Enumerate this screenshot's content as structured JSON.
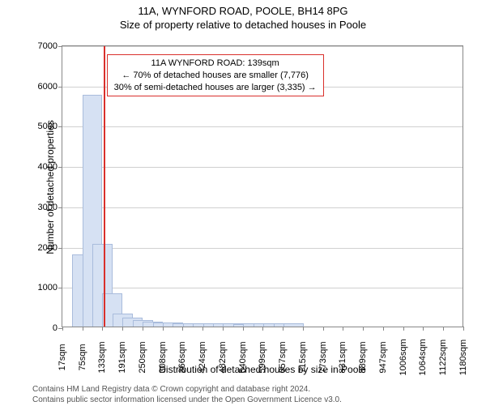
{
  "title": "11A, WYNFORD ROAD, POOLE, BH14 8PG",
  "subtitle": "Size of property relative to detached houses in Poole",
  "chart": {
    "type": "bar",
    "xlabel": "Distribution of detached houses by size in Poole",
    "ylabel": "Number of detached properties",
    "background_color": "#ffffff",
    "grid_color": "#d0d0d0",
    "axis_color": "#888888",
    "bar_fill": "#d6e1f3",
    "bar_stroke": "#a9bcdc",
    "ylim": [
      0,
      7000
    ],
    "ytick_step": 1000,
    "yticks": [
      0,
      1000,
      2000,
      3000,
      4000,
      5000,
      6000,
      7000
    ],
    "x_tick_labels": [
      "17sqm",
      "75sqm",
      "133sqm",
      "191sqm",
      "250sqm",
      "308sqm",
      "366sqm",
      "424sqm",
      "482sqm",
      "540sqm",
      "599sqm",
      "657sqm",
      "715sqm",
      "773sqm",
      "831sqm",
      "889sqm",
      "947sqm",
      "1006sqm",
      "1064sqm",
      "1122sqm",
      "1180sqm"
    ],
    "x_tick_step_sqm": 58,
    "x_min_sqm": 17,
    "x_max_sqm": 1180,
    "bars": [
      {
        "center_sqm": 75,
        "value": 1800
      },
      {
        "center_sqm": 104,
        "value": 5750
      },
      {
        "center_sqm": 133,
        "value": 2050
      },
      {
        "center_sqm": 162,
        "value": 820
      },
      {
        "center_sqm": 191,
        "value": 320
      },
      {
        "center_sqm": 220,
        "value": 220
      },
      {
        "center_sqm": 250,
        "value": 160
      },
      {
        "center_sqm": 279,
        "value": 130
      },
      {
        "center_sqm": 308,
        "value": 110
      },
      {
        "center_sqm": 337,
        "value": 100
      },
      {
        "center_sqm": 366,
        "value": 90
      },
      {
        "center_sqm": 395,
        "value": 80
      },
      {
        "center_sqm": 424,
        "value": 80
      },
      {
        "center_sqm": 453,
        "value": 80
      },
      {
        "center_sqm": 482,
        "value": 80
      },
      {
        "center_sqm": 511,
        "value": 80
      },
      {
        "center_sqm": 540,
        "value": 70
      },
      {
        "center_sqm": 570,
        "value": 80
      },
      {
        "center_sqm": 599,
        "value": 80
      },
      {
        "center_sqm": 628,
        "value": 80
      },
      {
        "center_sqm": 657,
        "value": 80
      },
      {
        "center_sqm": 686,
        "value": 80
      }
    ],
    "reference_line": {
      "sqm": 139,
      "color": "#d9302c",
      "width": 2
    },
    "annotation": {
      "lines": [
        "11A WYNFORD ROAD: 139sqm",
        "← 70% of detached houses are smaller (7,776)",
        "30% of semi-detached houses are larger (3,335) →"
      ],
      "border_color": "#d9302c",
      "text_color": "#000000",
      "left_sqm": 145,
      "top_value": 6800
    }
  },
  "footer": {
    "line1": "Contains HM Land Registry data © Crown copyright and database right 2024.",
    "line2": "Contains public sector information licensed under the Open Government Licence v3.0."
  }
}
